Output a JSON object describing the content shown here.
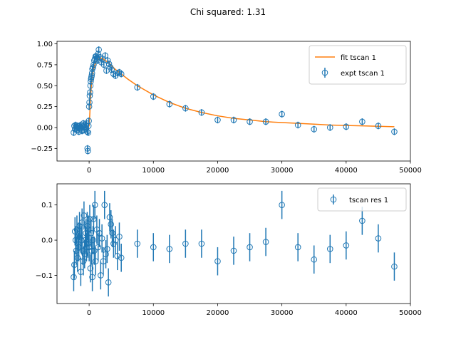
{
  "suptitle": "Chi squared: 1.31",
  "colors": {
    "fit": "#ff7f0e",
    "data": "#1f77b4",
    "axes": "#000000",
    "legend_border": "#cccccc"
  },
  "chart_data": [
    {
      "type": "scatter",
      "role": "fit-panel",
      "xlim": [
        -5000,
        50000
      ],
      "ylim": [
        -0.4,
        1.03
      ],
      "xticks": [
        0,
        10000,
        20000,
        30000,
        40000,
        50000
      ],
      "xtick_labels": [
        "0",
        "10000",
        "20000",
        "30000",
        "40000",
        "50000"
      ],
      "yticks": [
        -0.25,
        0.0,
        0.25,
        0.5,
        0.75,
        1.0
      ],
      "ytick_labels": [
        "−0.25",
        "0.00",
        "0.25",
        "0.50",
        "0.75",
        "1.00"
      ],
      "legend_position": "upper right",
      "legend": [
        "fit tscan 1",
        "expt tscan 1"
      ],
      "grid": false,
      "series": [
        {
          "name": "fit tscan 1",
          "kind": "line",
          "x": [
            -2500,
            -2000,
            -1500,
            -1000,
            -500,
            -200,
            0,
            100,
            200,
            300,
            400,
            500,
            600,
            800,
            1000,
            1250,
            1500,
            2000,
            2500,
            3000,
            3500,
            4000,
            4500,
            5000,
            6000,
            7500,
            10000,
            12500,
            15000,
            17500,
            20000,
            22500,
            25000,
            27500,
            30000,
            32500,
            35000,
            37500,
            40000,
            42500,
            45000,
            47500
          ],
          "y": [
            0.0,
            0.0,
            0.0,
            0.0,
            0.0,
            0.0,
            0.02,
            0.15,
            0.32,
            0.45,
            0.55,
            0.62,
            0.66,
            0.73,
            0.77,
            0.8,
            0.82,
            0.83,
            0.8,
            0.78,
            0.74,
            0.7,
            0.67,
            0.64,
            0.58,
            0.5,
            0.39,
            0.3,
            0.23,
            0.18,
            0.14,
            0.11,
            0.09,
            0.07,
            0.06,
            0.05,
            0.04,
            0.03,
            0.025,
            0.02,
            0.015,
            0.01
          ]
        },
        {
          "name": "expt tscan 1",
          "kind": "errorbar",
          "x": [
            -2400,
            -2300,
            -2200,
            -2100,
            -2000,
            -1900,
            -1800,
            -1700,
            -1600,
            -1500,
            -1400,
            -1300,
            -1200,
            -1100,
            -1000,
            -900,
            -800,
            -700,
            -600,
            -500,
            -400,
            -300,
            -250,
            -200,
            -150,
            -100,
            -50,
            0,
            50,
            100,
            150,
            200,
            250,
            300,
            350,
            400,
            450,
            500,
            600,
            700,
            800,
            900,
            1000,
            1100,
            1200,
            1300,
            1400,
            1500,
            1700,
            1900,
            2100,
            2300,
            2500,
            2700,
            2900,
            3100,
            3300,
            3500,
            3800,
            4100,
            4400,
            4700,
            5000,
            7500,
            10000,
            12500,
            15000,
            17500,
            20000,
            22500,
            25000,
            27500,
            30000,
            32500,
            35000,
            37500,
            40000,
            42500,
            45000,
            47500
          ],
          "y": [
            -0.06,
            0.02,
            -0.02,
            0.03,
            0.01,
            -0.03,
            0.02,
            0.0,
            -0.05,
            0.02,
            -0.02,
            0.03,
            0.0,
            -0.04,
            0.02,
            0.05,
            -0.03,
            0.01,
            0.03,
            -0.02,
            0.05,
            -0.05,
            -0.25,
            -0.28,
            -0.06,
            0.02,
            0.08,
            0.25,
            0.3,
            0.38,
            0.42,
            0.5,
            0.55,
            0.58,
            0.6,
            0.62,
            0.65,
            0.7,
            0.72,
            0.75,
            0.8,
            0.82,
            0.85,
            0.85,
            0.83,
            0.8,
            0.88,
            0.93,
            0.84,
            0.78,
            0.82,
            0.75,
            0.86,
            0.68,
            0.8,
            0.76,
            0.72,
            0.69,
            0.64,
            0.62,
            0.65,
            0.66,
            0.64,
            0.48,
            0.37,
            0.28,
            0.23,
            0.18,
            0.09,
            0.09,
            0.07,
            0.07,
            0.16,
            0.03,
            -0.02,
            0.0,
            0.01,
            0.07,
            0.02,
            -0.05
          ],
          "yerr": 0.04
        }
      ]
    },
    {
      "type": "scatter",
      "role": "residual-panel",
      "xlim": [
        -5000,
        50000
      ],
      "ylim": [
        -0.18,
        0.16
      ],
      "xticks": [
        0,
        10000,
        20000,
        30000,
        40000,
        50000
      ],
      "xtick_labels": [
        "0",
        "10000",
        "20000",
        "30000",
        "40000",
        "50000"
      ],
      "yticks": [
        -0.1,
        0.0,
        0.1
      ],
      "ytick_labels": [
        "−0.1",
        "0.0",
        "0.1"
      ],
      "legend_position": "upper right",
      "legend": [
        "tscan res 1"
      ],
      "grid": false,
      "series": [
        {
          "name": "tscan res 1",
          "kind": "errorbar",
          "x": [
            -2400,
            -2300,
            -2200,
            -2100,
            -2000,
            -1900,
            -1800,
            -1700,
            -1600,
            -1500,
            -1400,
            -1300,
            -1200,
            -1100,
            -1000,
            -900,
            -800,
            -700,
            -600,
            -500,
            -400,
            -300,
            -200,
            -100,
            0,
            100,
            200,
            300,
            400,
            500,
            600,
            700,
            800,
            900,
            1000,
            1200,
            1400,
            1600,
            1800,
            2000,
            2200,
            2400,
            2600,
            2800,
            3000,
            3200,
            3400,
            3600,
            3800,
            4100,
            4400,
            4700,
            5000,
            7500,
            10000,
            12500,
            15000,
            17500,
            20000,
            22500,
            25000,
            27500,
            30000,
            32500,
            35000,
            37500,
            40000,
            42500,
            45000,
            47500
          ],
          "y": [
            -0.105,
            -0.07,
            0.025,
            0.0,
            -0.03,
            0.03,
            -0.05,
            0.01,
            -0.02,
            0.04,
            0.01,
            -0.09,
            0.0,
            0.05,
            -0.03,
            -0.06,
            0.07,
            -0.04,
            0.0,
            0.02,
            -0.02,
            0.04,
            -0.01,
            0.03,
            -0.02,
            0.06,
            -0.08,
            0.02,
            -0.03,
            -0.105,
            0.0,
            0.06,
            -0.03,
            0.1,
            -0.06,
            0.03,
            -0.02,
            0.02,
            -0.1,
            0.005,
            -0.06,
            0.1,
            -0.04,
            -0.025,
            -0.12,
            0.065,
            0.045,
            0.02,
            -0.01,
            0.0,
            -0.045,
            0.01,
            -0.05,
            -0.01,
            -0.02,
            -0.025,
            -0.01,
            -0.01,
            -0.06,
            -0.03,
            -0.02,
            -0.005,
            0.1,
            -0.02,
            -0.055,
            -0.025,
            -0.015,
            0.055,
            0.005,
            -0.075
          ],
          "yerr": 0.04
        }
      ]
    }
  ]
}
